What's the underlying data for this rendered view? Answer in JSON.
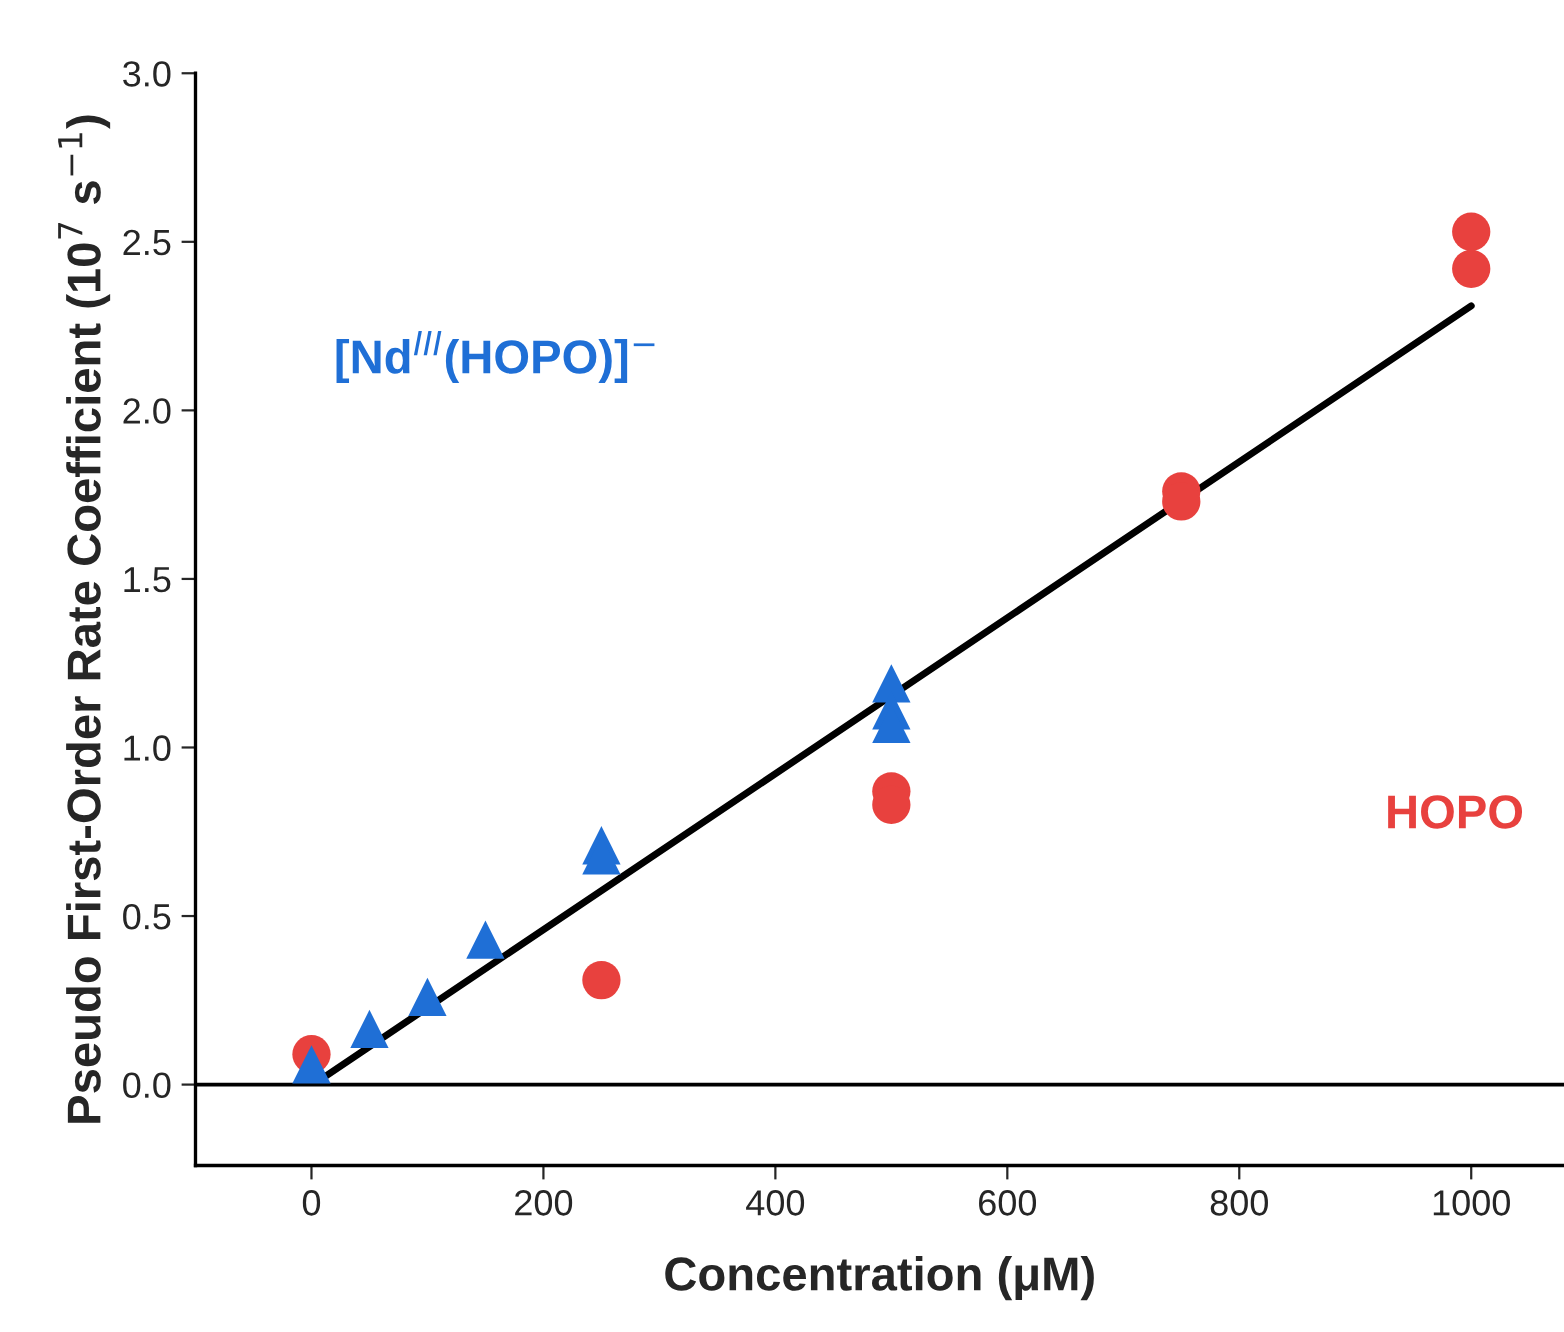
{
  "chart_data": {
    "type": "scatter",
    "xlabel": "Concentration (μM)",
    "ylabel": "Pseudo First-Order Rate Coefficient (10$^{7}$ s$^{−1}$)",
    "xlim": [
      -100,
      1080
    ],
    "ylim": [
      -0.24,
      3.0
    ],
    "xticks": [
      0,
      200,
      400,
      600,
      800,
      1000
    ],
    "yticks": [
      {
        "value": 0,
        "label": "0.0"
      },
      {
        "value": 0.5,
        "label": "0.5"
      },
      {
        "value": 1,
        "label": "1.0"
      },
      {
        "value": 1.5,
        "label": "1.5"
      },
      {
        "value": 2,
        "label": "2.0"
      },
      {
        "value": 2.5,
        "label": "2.5"
      },
      {
        "value": 3,
        "label": "3.0"
      }
    ],
    "grid": false,
    "legend": false,
    "series": [
      {
        "name": "HOPO",
        "color": "#e8413e",
        "marker": "circle",
        "x": [
          0,
          250,
          500,
          500,
          750,
          750,
          1000,
          1000
        ],
        "values": [
          0.09,
          0.31,
          0.87,
          0.83,
          1.76,
          1.73,
          2.53,
          2.42
        ]
      },
      {
        "name": "[Nd$^{III}$(HOPO)]$^{−}$",
        "color": "#1f6fd6",
        "marker": "triangle",
        "x": [
          0,
          50,
          100,
          150,
          250,
          250,
          500,
          500,
          500
        ],
        "values": [
          0.06,
          0.165,
          0.26,
          0.43,
          0.71,
          0.68,
          1.19,
          1.11,
          1.07
        ]
      },
      {
        "type": "line",
        "color": "#000000",
        "marker": "none",
        "x": [
          10,
          1000
        ],
        "values": [
          0.02,
          2.31
        ]
      }
    ],
    "ref_lines": [
      {
        "axis": "y",
        "value": 0,
        "color": "#000000"
      }
    ]
  }
}
